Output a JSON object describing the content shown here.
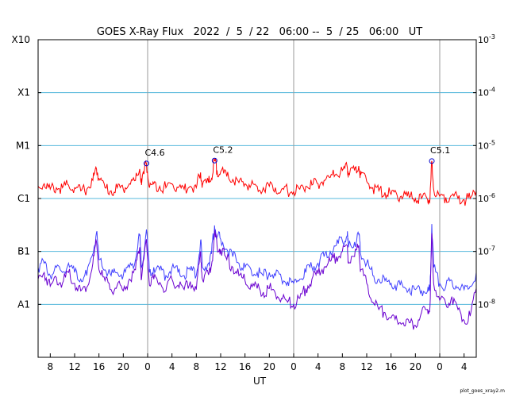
{
  "chart_data": {
    "type": "line",
    "title": "GOES X-Ray Flux   2022  /  5  / 22   06:00 --  5  / 25   06:00   UT",
    "xlabel": "UT",
    "footer": "plot_goes_xray2.m",
    "x_range_hours": [
      6,
      78
    ],
    "ylim_wm2": [
      1e-09,
      0.001
    ],
    "y_scale": "log",
    "grid": "horizontal at class boundaries, vertical at day boundaries",
    "x_tick_labels": [
      "8",
      "12",
      "16",
      "20",
      "0",
      "4",
      "8",
      "12",
      "16",
      "20",
      "0",
      "4",
      "8",
      "12",
      "16",
      "20",
      "0",
      "4"
    ],
    "x_tick_hours": [
      8,
      12,
      16,
      20,
      24,
      28,
      32,
      36,
      40,
      44,
      48,
      52,
      56,
      60,
      64,
      68,
      72,
      76
    ],
    "day_boundaries_hours": [
      24,
      48,
      72
    ],
    "class_labels": [
      "X10",
      "X1",
      "M1",
      "C1",
      "B1",
      "A1"
    ],
    "class_values_wm2": [
      0.001,
      0.0001,
      1e-05,
      1e-06,
      1e-07,
      1e-08
    ],
    "right_axis": [
      {
        "base": "10",
        "exp": "-3",
        "value": 0.001
      },
      {
        "base": "10",
        "exp": "-4",
        "value": 0.0001
      },
      {
        "base": "10",
        "exp": "-5",
        "value": 1e-05
      },
      {
        "base": "10",
        "exp": "-6",
        "value": 1e-06
      },
      {
        "base": "10",
        "exp": "-7",
        "value": 1e-07
      },
      {
        "base": "10",
        "exp": "-8",
        "value": 1e-08
      }
    ],
    "flares": [
      {
        "label": "C4.6",
        "hour": 23.8,
        "flux": 4.6e-06
      },
      {
        "label": "C5.2",
        "hour": 35.0,
        "flux": 5.2e-06
      },
      {
        "label": "C5.1",
        "hour": 70.7,
        "flux": 5.1e-06
      }
    ],
    "series": [
      {
        "name": "",
        "color": "#ff0000",
        "x": [
          6,
          7,
          8,
          9,
          10,
          11,
          12,
          13,
          14,
          15,
          15.6,
          16,
          17,
          18,
          19,
          20,
          21,
          22,
          22.7,
          23,
          23.8,
          24.3,
          25,
          26,
          27,
          28,
          29,
          30,
          31,
          32,
          32.7,
          33,
          34,
          34.5,
          35,
          35.4,
          36,
          37,
          38,
          39,
          40,
          41,
          42,
          43,
          44,
          45,
          46,
          47,
          48,
          49,
          50,
          51,
          52,
          53,
          54,
          55,
          56,
          56.8,
          57,
          58,
          58.7,
          59,
          60,
          61,
          62,
          63,
          64,
          65,
          66,
          67,
          68,
          69,
          70,
          70.4,
          70.7,
          71,
          72,
          73,
          74,
          75,
          76,
          77,
          78
        ],
        "y": [
          1.7e-06,
          1.9e-06,
          1.5e-06,
          1.6e-06,
          1.6e-06,
          1.8e-06,
          1.6e-06,
          1.4e-06,
          1.5e-06,
          2.2e-06,
          3.6e-06,
          2.4e-06,
          1.6e-06,
          1.4e-06,
          1.6e-06,
          1.5e-06,
          1.9e-06,
          2.2e-06,
          3.6e-06,
          1.8e-06,
          4.6e-06,
          1.6e-06,
          1.9e-06,
          1.7e-06,
          1.6e-06,
          1.9e-06,
          1.6e-06,
          1.5e-06,
          1.7e-06,
          1.6e-06,
          3.1e-06,
          1.8e-06,
          2e-06,
          2.4e-06,
          5.2e-06,
          3.4e-06,
          3.2e-06,
          2.6e-06,
          2.3e-06,
          2e-06,
          1.9e-06,
          1.8e-06,
          1.7e-06,
          1.6e-06,
          1.7e-06,
          1.6e-06,
          1.5e-06,
          1.4e-06,
          1.35e-06,
          1.5e-06,
          1.7e-06,
          1.8e-06,
          1.9e-06,
          2.2e-06,
          2.5e-06,
          2.9e-06,
          3.4e-06,
          3.9e-06,
          3e-06,
          3.4e-06,
          4.1e-06,
          2.8e-06,
          2.1e-06,
          1.6e-06,
          1.4e-06,
          1.3e-06,
          1.2e-06,
          1.15e-06,
          1.1e-06,
          1.05e-06,
          1e-06,
          1e-06,
          9.5e-07,
          9.5e-07,
          5.1e-06,
          1.5e-06,
          1.1e-06,
          1.05e-06,
          1.15e-06,
          1e-06,
          9.5e-07,
          1e-06,
          1.4e-06
        ]
      },
      {
        "name": "",
        "color": "#4040ff",
        "x": [
          6,
          7,
          8,
          9,
          10,
          11,
          12,
          13,
          14,
          15,
          15.6,
          16,
          17,
          18,
          19,
          20,
          21,
          22,
          22.7,
          23,
          23.8,
          24.3,
          25,
          26,
          27,
          28,
          29,
          30,
          31,
          32,
          32.7,
          33,
          34,
          34.5,
          35,
          35.4,
          36,
          37,
          38,
          39,
          40,
          41,
          42,
          43,
          44,
          45,
          46,
          47,
          48,
          49,
          50,
          51,
          52,
          53,
          54,
          55,
          56,
          56.8,
          57,
          58,
          58.7,
          59,
          60,
          61,
          62,
          63,
          64,
          65,
          66,
          67,
          68,
          69,
          70,
          70.4,
          70.7,
          71,
          72,
          73,
          74,
          75,
          76,
          77,
          78
        ],
        "y": [
          5e-08,
          6e-08,
          3.5e-08,
          5e-08,
          4e-08,
          6e-08,
          4e-08,
          3e-08,
          3.5e-08,
          9e-08,
          2.3e-07,
          7e-08,
          4.5e-08,
          3.5e-08,
          4e-08,
          3.5e-08,
          5e-08,
          7e-08,
          2e-07,
          5e-08,
          2.6e-07,
          4e-08,
          5e-08,
          4.5e-08,
          3.5e-08,
          5e-08,
          4e-08,
          3.5e-08,
          4.5e-08,
          3.5e-08,
          1.6e-07,
          5e-08,
          6e-08,
          9e-08,
          3.1e-07,
          1.9e-07,
          1.7e-07,
          1.1e-07,
          8e-08,
          6e-08,
          5e-08,
          4.5e-08,
          4e-08,
          3.5e-08,
          4e-08,
          3.5e-08,
          3e-08,
          2.7e-08,
          2.5e-08,
          3e-08,
          4e-08,
          5e-08,
          6e-08,
          8e-08,
          1e-07,
          1.3e-07,
          1.6e-07,
          2e-07,
          1.2e-07,
          1.5e-07,
          2.1e-07,
          9e-08,
          6e-08,
          3.5e-08,
          3e-08,
          2.8e-08,
          2.5e-08,
          2.3e-08,
          2.1e-08,
          2e-08,
          1.9e-08,
          1.8e-08,
          1.8e-08,
          1.8e-08,
          3.3e-07,
          5e-08,
          2.5e-08,
          2.2e-08,
          2.8e-08,
          2.1e-08,
          1.9e-08,
          2.2e-08,
          4e-08
        ]
      },
      {
        "name": "",
        "color": "#6a00d0",
        "x": [
          6,
          7,
          8,
          9,
          10,
          11,
          12,
          13,
          14,
          15,
          15.6,
          16,
          17,
          18,
          19,
          20,
          21,
          22,
          22.7,
          23,
          23.8,
          24.3,
          25,
          26,
          27,
          28,
          29,
          30,
          31,
          32,
          32.7,
          33,
          34,
          34.5,
          35,
          35.4,
          36,
          37,
          38,
          39,
          40,
          41,
          42,
          43,
          44,
          45,
          46,
          47,
          48,
          49,
          50,
          51,
          52,
          53,
          54,
          55,
          56,
          56.8,
          57,
          58,
          58.7,
          59,
          60,
          61,
          62,
          63,
          64,
          65,
          66,
          67,
          68,
          69,
          70,
          70.4,
          70.7,
          71,
          72,
          73,
          74,
          75,
          76,
          77,
          78
        ],
        "y": [
          3e-08,
          4e-08,
          2.2e-08,
          3.2e-08,
          2.5e-08,
          4e-08,
          2.5e-08,
          1.8e-08,
          2.1e-08,
          6e-08,
          1.5e-07,
          4.5e-08,
          2.8e-08,
          1.9e-08,
          2.3e-08,
          1.8e-08,
          3e-08,
          4.5e-08,
          1.2e-07,
          3e-08,
          1.7e-07,
          2.3e-08,
          3e-08,
          2.6e-08,
          1.8e-08,
          3e-08,
          2.3e-08,
          1.9e-08,
          2.7e-08,
          1.9e-08,
          1e-07,
          3e-08,
          3.6e-08,
          5.5e-08,
          2.2e-07,
          1.3e-07,
          1.1e-07,
          7e-08,
          5e-08,
          3.5e-08,
          2.8e-08,
          2.4e-08,
          2e-08,
          1.7e-08,
          2e-08,
          1.6e-08,
          1.3e-08,
          1.1e-08,
          1e-08,
          1.3e-08,
          2e-08,
          3e-08,
          3.8e-08,
          5e-08,
          6.5e-08,
          8e-08,
          1e-07,
          1.3e-07,
          6e-08,
          8e-08,
          1.3e-07,
          4.5e-08,
          2.5e-08,
          1.1e-08,
          8e-09,
          7e-09,
          5.5e-09,
          5e-09,
          4.5e-09,
          4.5e-09,
          4e-09,
          7e-09,
          8e-09,
          9e-09,
          2.2e-07,
          2.5e-08,
          1.2e-08,
          1e-08,
          1.4e-08,
          8e-09,
          5e-09,
          6e-09,
          2e-08
        ]
      }
    ]
  }
}
